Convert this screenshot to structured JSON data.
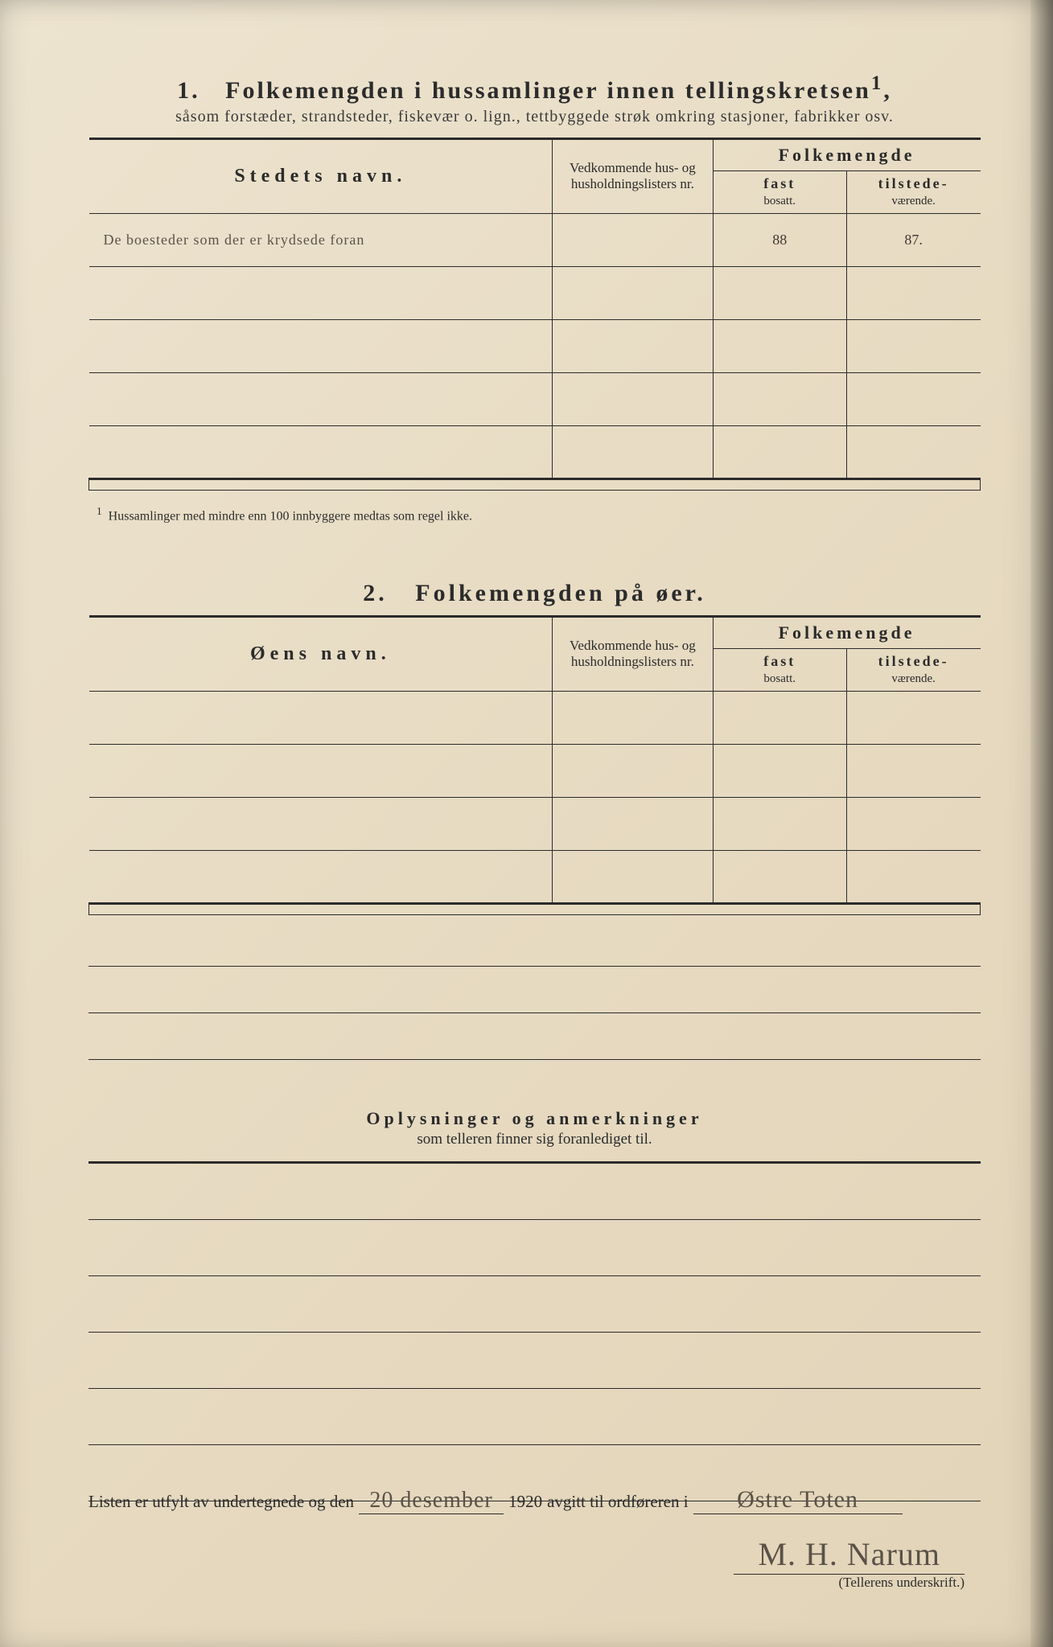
{
  "section1": {
    "number": "1.",
    "title": "Folkemengden i hussamlinger innen tellingskretsen",
    "title_sup": "1",
    "title_comma": ",",
    "subtitle": "såsom forstæder, strandsteder, fiskevær o. lign., tettbyggede strøk omkring stasjoner, fabrikker osv.",
    "headers": {
      "name": "Stedets navn.",
      "lists": "Vedkommende hus- og husholdningslisters nr.",
      "folk": "Folkemengde",
      "fast_a": "fast",
      "fast_b": "bosatt.",
      "tilst_a": "tilstede-",
      "tilst_b": "værende."
    },
    "rows": [
      {
        "name": "De boesteder som der er krydsede foran",
        "lists": "",
        "fast": "88",
        "tilst": "87."
      },
      {
        "name": "",
        "lists": "",
        "fast": "",
        "tilst": ""
      },
      {
        "name": "",
        "lists": "",
        "fast": "",
        "tilst": ""
      },
      {
        "name": "",
        "lists": "",
        "fast": "",
        "tilst": ""
      },
      {
        "name": "",
        "lists": "",
        "fast": "",
        "tilst": ""
      }
    ],
    "footnote_sup": "1",
    "footnote": "Hussamlinger med mindre enn 100 innbyggere medtas som regel ikke."
  },
  "section2": {
    "number": "2.",
    "title": "Folkemengden på øer.",
    "headers": {
      "name": "Øens navn.",
      "lists": "Vedkommende hus- og husholdningslisters nr.",
      "folk": "Folkemengde",
      "fast_a": "fast",
      "fast_b": "bosatt.",
      "tilst_a": "tilstede-",
      "tilst_b": "værende."
    },
    "rows": [
      {
        "name": "",
        "lists": "",
        "fast": "",
        "tilst": ""
      },
      {
        "name": "",
        "lists": "",
        "fast": "",
        "tilst": ""
      },
      {
        "name": "",
        "lists": "",
        "fast": "",
        "tilst": ""
      },
      {
        "name": "",
        "lists": "",
        "fast": "",
        "tilst": ""
      }
    ],
    "extra_lines": 3
  },
  "remarks": {
    "title": "Oplysninger og anmerkninger",
    "subtitle": "som telleren finner sig foranlediget til.",
    "lines": 6
  },
  "footer": {
    "text_a": "Listen er utfylt av undertegnede og den",
    "date": "20 desember",
    "year": "1920",
    "text_b": "avgitt til ordføreren i",
    "place": "Østre Toten",
    "signature": "M. H. Narum",
    "signature_label": "(Tellerens underskrift.)"
  }
}
